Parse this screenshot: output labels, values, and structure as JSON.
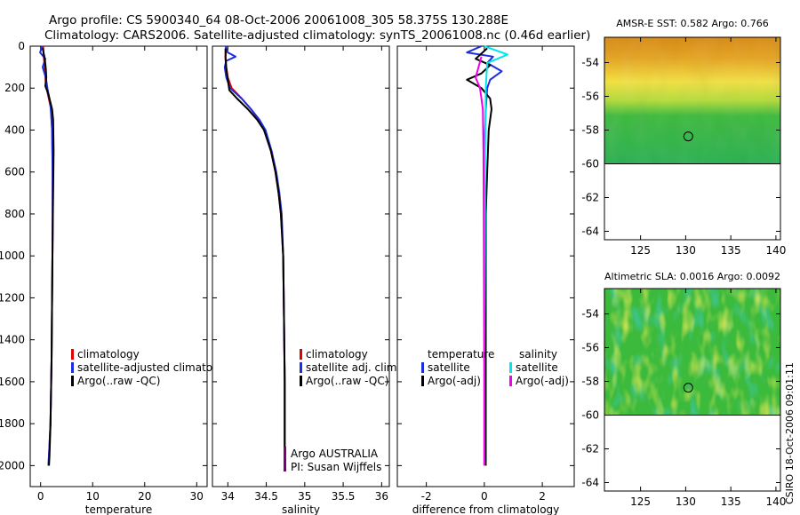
{
  "header": {
    "line1": "Argo profile: CS 5900340_64 08-Oct-2006 20061008_305 58.375S 130.288E",
    "line2": "Climatology: CARS2006. Satellite-adjusted climatology: synTS_20061008.nc (0.46d earlier)"
  },
  "footer": {
    "credit": "CSIRO 18-Oct-2006 09:01:11"
  },
  "colors": {
    "climatology": "#e00000",
    "satellite": "#1a2ee0",
    "argo": "#000000",
    "satellite_diff_salinity": "#00e5ee",
    "argo_adj_salinity": "#ee00ee",
    "argo_australia": "#7a007a"
  },
  "chart_data": [
    {
      "id": "temperature",
      "type": "line",
      "xlabel": "temperature",
      "ylabel": "",
      "xlim": [
        -2,
        32
      ],
      "ylim": [
        2100,
        0
      ],
      "xticks": [
        0,
        10,
        20,
        30
      ],
      "yticks": [
        0,
        200,
        400,
        600,
        800,
        1000,
        1200,
        1400,
        1600,
        1800,
        2000
      ],
      "legend": [
        "climatology",
        "satellite-adjusted climatology",
        "Argo(..raw -QC)"
      ],
      "series": [
        {
          "name": "climatology",
          "color": "#e00000",
          "points": [
            [
              0.5,
              0
            ],
            [
              0.6,
              50
            ],
            [
              0.8,
              100
            ],
            [
              0.9,
              150
            ],
            [
              1.0,
              180
            ],
            [
              1.4,
              230
            ],
            [
              2.0,
              300
            ],
            [
              2.2,
              400
            ],
            [
              2.3,
              600
            ],
            [
              2.3,
              900
            ],
            [
              2.2,
              1200
            ],
            [
              2.1,
              1500
            ],
            [
              1.9,
              1800
            ],
            [
              1.6,
              1950
            ],
            [
              1.5,
              2000
            ]
          ]
        },
        {
          "name": "satellite-adjusted climatology",
          "color": "#1a2ee0",
          "points": [
            [
              0.3,
              0
            ],
            [
              -0.1,
              30
            ],
            [
              0.9,
              60
            ],
            [
              0.4,
              100
            ],
            [
              1.0,
              150
            ],
            [
              1.3,
              200
            ],
            [
              1.9,
              280
            ],
            [
              2.2,
              400
            ],
            [
              2.3,
              600
            ],
            [
              2.3,
              900
            ],
            [
              2.2,
              1200
            ],
            [
              2.1,
              1500
            ],
            [
              1.9,
              1800
            ],
            [
              1.6,
              1950
            ],
            [
              1.5,
              2000
            ]
          ]
        },
        {
          "name": "Argo(..raw -QC)",
          "color": "#000000",
          "points": [
            [
              0.4,
              10
            ],
            [
              0.8,
              60
            ],
            [
              1.0,
              110
            ],
            [
              1.1,
              150
            ],
            [
              0.9,
              190
            ],
            [
              1.5,
              230
            ],
            [
              2.2,
              300
            ],
            [
              2.4,
              350
            ],
            [
              2.5,
              500
            ],
            [
              2.4,
              700
            ],
            [
              2.3,
              900
            ],
            [
              2.2,
              1200
            ],
            [
              2.1,
              1500
            ],
            [
              1.9,
              1800
            ],
            [
              1.7,
              1950
            ],
            [
              1.6,
              2000
            ]
          ]
        }
      ]
    },
    {
      "id": "salinity",
      "type": "line",
      "xlabel": "salinity",
      "ylabel": "",
      "xlim": [
        33.8,
        36.1
      ],
      "ylim": [
        2100,
        0
      ],
      "xticks": [
        34,
        34.5,
        35,
        35.5,
        36
      ],
      "xticklabels": [
        "34",
        "34.5",
        "35",
        "35.5",
        "36"
      ],
      "legend": [
        "climatology",
        "satellite adj. clim.",
        "Argo(..raw -QC)"
      ],
      "annotations": [
        "Argo AUSTRALIA",
        "PI: Susan Wijffels"
      ],
      "series": [
        {
          "name": "climatology",
          "color": "#e00000",
          "points": [
            [
              33.98,
              0
            ],
            [
              33.97,
              50
            ],
            [
              33.98,
              100
            ],
            [
              34.0,
              150
            ],
            [
              34.05,
              200
            ],
            [
              34.18,
              250
            ],
            [
              34.3,
              300
            ],
            [
              34.4,
              350
            ],
            [
              34.48,
              400
            ],
            [
              34.56,
              500
            ],
            [
              34.62,
              600
            ],
            [
              34.66,
              700
            ],
            [
              34.69,
              800
            ],
            [
              34.72,
              1000
            ],
            [
              34.73,
              1300
            ],
            [
              34.74,
              1600
            ],
            [
              34.74,
              2000
            ]
          ]
        },
        {
          "name": "satellite adj. clim.",
          "color": "#1a2ee0",
          "points": [
            [
              33.97,
              0
            ],
            [
              34.0,
              30
            ],
            [
              34.1,
              50
            ],
            [
              33.98,
              70
            ],
            [
              33.96,
              100
            ],
            [
              33.98,
              150
            ],
            [
              34.03,
              200
            ],
            [
              34.18,
              250
            ],
            [
              34.3,
              300
            ],
            [
              34.41,
              350
            ],
            [
              34.49,
              400
            ],
            [
              34.57,
              500
            ],
            [
              34.63,
              600
            ],
            [
              34.67,
              700
            ],
            [
              34.7,
              800
            ],
            [
              34.72,
              1000
            ],
            [
              34.73,
              1300
            ],
            [
              34.74,
              1600
            ],
            [
              34.74,
              2000
            ]
          ]
        },
        {
          "name": "Argo(..raw -QC)",
          "color": "#000000",
          "points": [
            [
              33.97,
              10
            ],
            [
              33.97,
              60
            ],
            [
              33.98,
              110
            ],
            [
              34.0,
              160
            ],
            [
              34.02,
              210
            ],
            [
              34.12,
              250
            ],
            [
              34.26,
              300
            ],
            [
              34.38,
              350
            ],
            [
              34.47,
              400
            ],
            [
              34.56,
              500
            ],
            [
              34.62,
              600
            ],
            [
              34.66,
              700
            ],
            [
              34.69,
              800
            ],
            [
              34.72,
              1000
            ],
            [
              34.73,
              1300
            ],
            [
              34.74,
              1600
            ],
            [
              34.74,
              2000
            ]
          ]
        }
      ]
    },
    {
      "id": "difference",
      "type": "line",
      "xlabel": "difference from climatology",
      "ylabel": "",
      "xlim": [
        -3,
        3.1
      ],
      "ylim": [
        2100,
        0
      ],
      "xticks": [
        -2,
        0,
        2
      ],
      "legend": {
        "temperature": [
          "temperature",
          "satellite",
          "Argo(-adj)"
        ],
        "salinity": [
          "salinity",
          "satellite",
          "Argo(-adj)"
        ]
      },
      "series": [
        {
          "name": "temperature satellite",
          "color": "#1a2ee0",
          "points": [
            [
              -0.1,
              0
            ],
            [
              -0.6,
              30
            ],
            [
              0.3,
              50
            ],
            [
              0.1,
              80
            ],
            [
              0.6,
              120
            ],
            [
              0.2,
              160
            ],
            [
              0.1,
              200
            ],
            [
              0.05,
              300
            ],
            [
              0.0,
              500
            ],
            [
              0.0,
              1000
            ],
            [
              0.0,
              2000
            ]
          ]
        },
        {
          "name": "temperature Argo(-adj)",
          "color": "#000000",
          "points": [
            [
              0.1,
              10
            ],
            [
              -0.3,
              60
            ],
            [
              0.2,
              90
            ],
            [
              -0.1,
              130
            ],
            [
              -0.6,
              160
            ],
            [
              -0.1,
              200
            ],
            [
              0.2,
              250
            ],
            [
              0.25,
              300
            ],
            [
              0.15,
              400
            ],
            [
              0.1,
              600
            ],
            [
              0.05,
              800
            ],
            [
              0.05,
              1200
            ],
            [
              0.05,
              1600
            ],
            [
              0.05,
              2000
            ]
          ]
        },
        {
          "name": "salinity satellite",
          "color": "#00e5ee",
          "points": [
            [
              0.0,
              0
            ],
            [
              0.8,
              40
            ],
            [
              0.1,
              80
            ],
            [
              0.05,
              200
            ],
            [
              0.03,
              500
            ],
            [
              0.02,
              1000
            ],
            [
              0.0,
              1500
            ],
            [
              0.0,
              2000
            ]
          ]
        },
        {
          "name": "salinity Argo(-adj)",
          "color": "#ee00ee",
          "points": [
            [
              -0.1,
              50
            ],
            [
              -0.3,
              150
            ],
            [
              -0.15,
              200
            ],
            [
              -0.05,
              300
            ],
            [
              -0.03,
              500
            ],
            [
              -0.02,
              800
            ],
            [
              -0.01,
              1200
            ],
            [
              0.0,
              1600
            ],
            [
              0.0,
              2000
            ]
          ]
        }
      ]
    },
    {
      "id": "sst-map",
      "type": "heatmap",
      "title": "AMSR-E SST: 0.582 Argo: 0.766",
      "xlim": [
        121,
        140.5
      ],
      "ylim": [
        -64.5,
        -52.5
      ],
      "xticks": [
        125,
        130,
        135,
        140
      ],
      "yticks": [
        -54,
        -56,
        -58,
        -60,
        -62,
        -64
      ],
      "data_south_limit": -60,
      "marker": {
        "lon": 130.288,
        "lat": -58.375
      }
    },
    {
      "id": "sla-map",
      "type": "heatmap",
      "title": "Altimetric SLA: 0.0016 Argo: 0.0092",
      "xlim": [
        121,
        140.5
      ],
      "ylim": [
        -64.5,
        -52.5
      ],
      "xticks": [
        125,
        130,
        135,
        140
      ],
      "yticks": [
        -54,
        -56,
        -58,
        -60,
        -62,
        -64
      ],
      "data_south_limit": -60,
      "marker": {
        "lon": 130.288,
        "lat": -58.375
      }
    }
  ]
}
